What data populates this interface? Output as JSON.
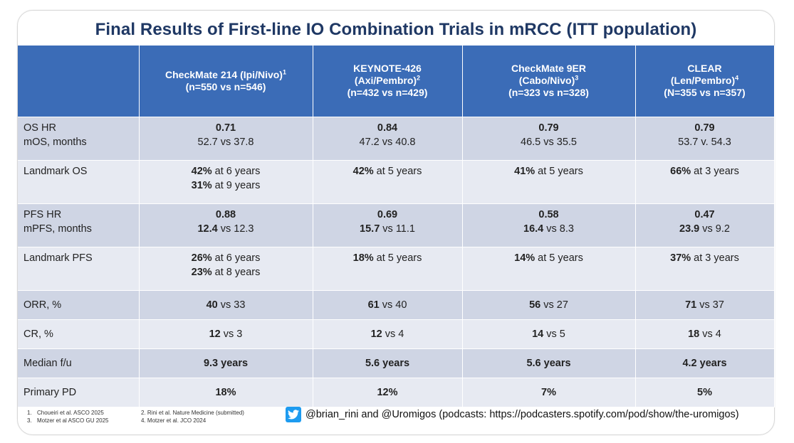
{
  "title": "Final Results of First-line IO Combination Trials in mRCC (ITT population)",
  "columns": [
    {
      "line1": "CheckMate 214 (Ipi/Nivo)",
      "sup": "1",
      "line2": "(n=550 vs n=546)"
    },
    {
      "line1": "KEYNOTE-426",
      "line2a": "(Axi/Pembro)",
      "sup": "2",
      "line3": "(n=432 vs n=429)"
    },
    {
      "line1": "CheckMate 9ER",
      "line2a": "(Cabo/Nivo)",
      "sup": "3",
      "line3": "(n=323 vs n=328)"
    },
    {
      "line1": "CLEAR",
      "line2a": "(Len/Pembro)",
      "sup": "4",
      "line3": "(N=355 vs n=357)"
    }
  ],
  "rows": {
    "os": {
      "label1": "OS HR",
      "label2": "mOS, months",
      "cells": [
        {
          "bold": "0.71",
          "text": "52.7 vs 37.8"
        },
        {
          "bold": "0.84",
          "text": "47.2 vs 40.8"
        },
        {
          "bold": "0.79",
          "text": "46.5 vs 35.5"
        },
        {
          "bold": "0.79",
          "text": "53.7 v. 54.3"
        }
      ]
    },
    "landmark_os": {
      "label": "Landmark OS",
      "cells": [
        {
          "b1": "42%",
          "t1": " at 6 years",
          "b2": "31%",
          "t2": " at 9 years"
        },
        {
          "b1": "42%",
          "t1": " at 5 years"
        },
        {
          "b1": "41%",
          "t1": " at 5 years"
        },
        {
          "b1": "66%",
          "t1": " at 3 years"
        }
      ]
    },
    "pfs": {
      "label1": "PFS HR",
      "label2": "mPFS, months",
      "cells": [
        {
          "bold": "0.88",
          "b2": "12.4",
          "t2": " vs 12.3"
        },
        {
          "bold": "0.69",
          "b2": "15.7",
          "t2": " vs 11.1"
        },
        {
          "bold": "0.58",
          "b2": "16.4",
          "t2": " vs 8.3"
        },
        {
          "bold": "0.47",
          "b2": "23.9",
          "t2": " vs 9.2"
        }
      ]
    },
    "landmark_pfs": {
      "label": "Landmark PFS",
      "cells": [
        {
          "b1": "26%",
          "t1": " at 6 years",
          "b2": "23%",
          "t2": " at 8 years"
        },
        {
          "b1": "18%",
          "t1": " at 5 years"
        },
        {
          "b1": "14%",
          "t1": " at 5 years"
        },
        {
          "b1": "37%",
          "t1": " at 3 years"
        }
      ]
    },
    "orr": {
      "label": "ORR, %",
      "cells": [
        {
          "b1": "40",
          "t1": " vs 33"
        },
        {
          "b1": "61",
          "t1": " vs 40"
        },
        {
          "b1": "56",
          "t1": " vs 27"
        },
        {
          "b1": "71",
          "t1": " vs 37"
        }
      ]
    },
    "cr": {
      "label": "CR, %",
      "cells": [
        {
          "b1": "12",
          "t1": " vs 3"
        },
        {
          "b1": "12",
          "t1": " vs 4"
        },
        {
          "b1": "14",
          "t1": " vs 5"
        },
        {
          "b1": "18",
          "t1": " vs 4"
        }
      ]
    },
    "followup": {
      "label": "Median f/u",
      "cells": [
        "9.3 years",
        "5.6 years",
        "5.6 years",
        "4.2 years"
      ]
    },
    "ppd": {
      "label": "Primary PD",
      "cells": [
        "18%",
        "12%",
        "7%",
        "5%"
      ]
    }
  },
  "footnotes": [
    {
      "num": "1.",
      "text": "Choueiri et al. ASCO 2025"
    },
    {
      "num": "2.",
      "text": "Rini et al. Nature Medicine (submitted)"
    },
    {
      "num": "3.",
      "text": "Motzer et al ASCO GU 2025"
    },
    {
      "num": "4.",
      "text": "Motzer et al. JCO 2024"
    }
  ],
  "credit": "@brian_rini and @Uromigos (podcasts: https://podcasters.spotify.com/pod/show/the-uromigos)",
  "credit_icon": "twitter-bird-icon",
  "colors": {
    "header": "#3b6cb7",
    "row_dark": "#cfd5e4",
    "row_light": "#e7eaf2",
    "title": "#1f3864"
  }
}
